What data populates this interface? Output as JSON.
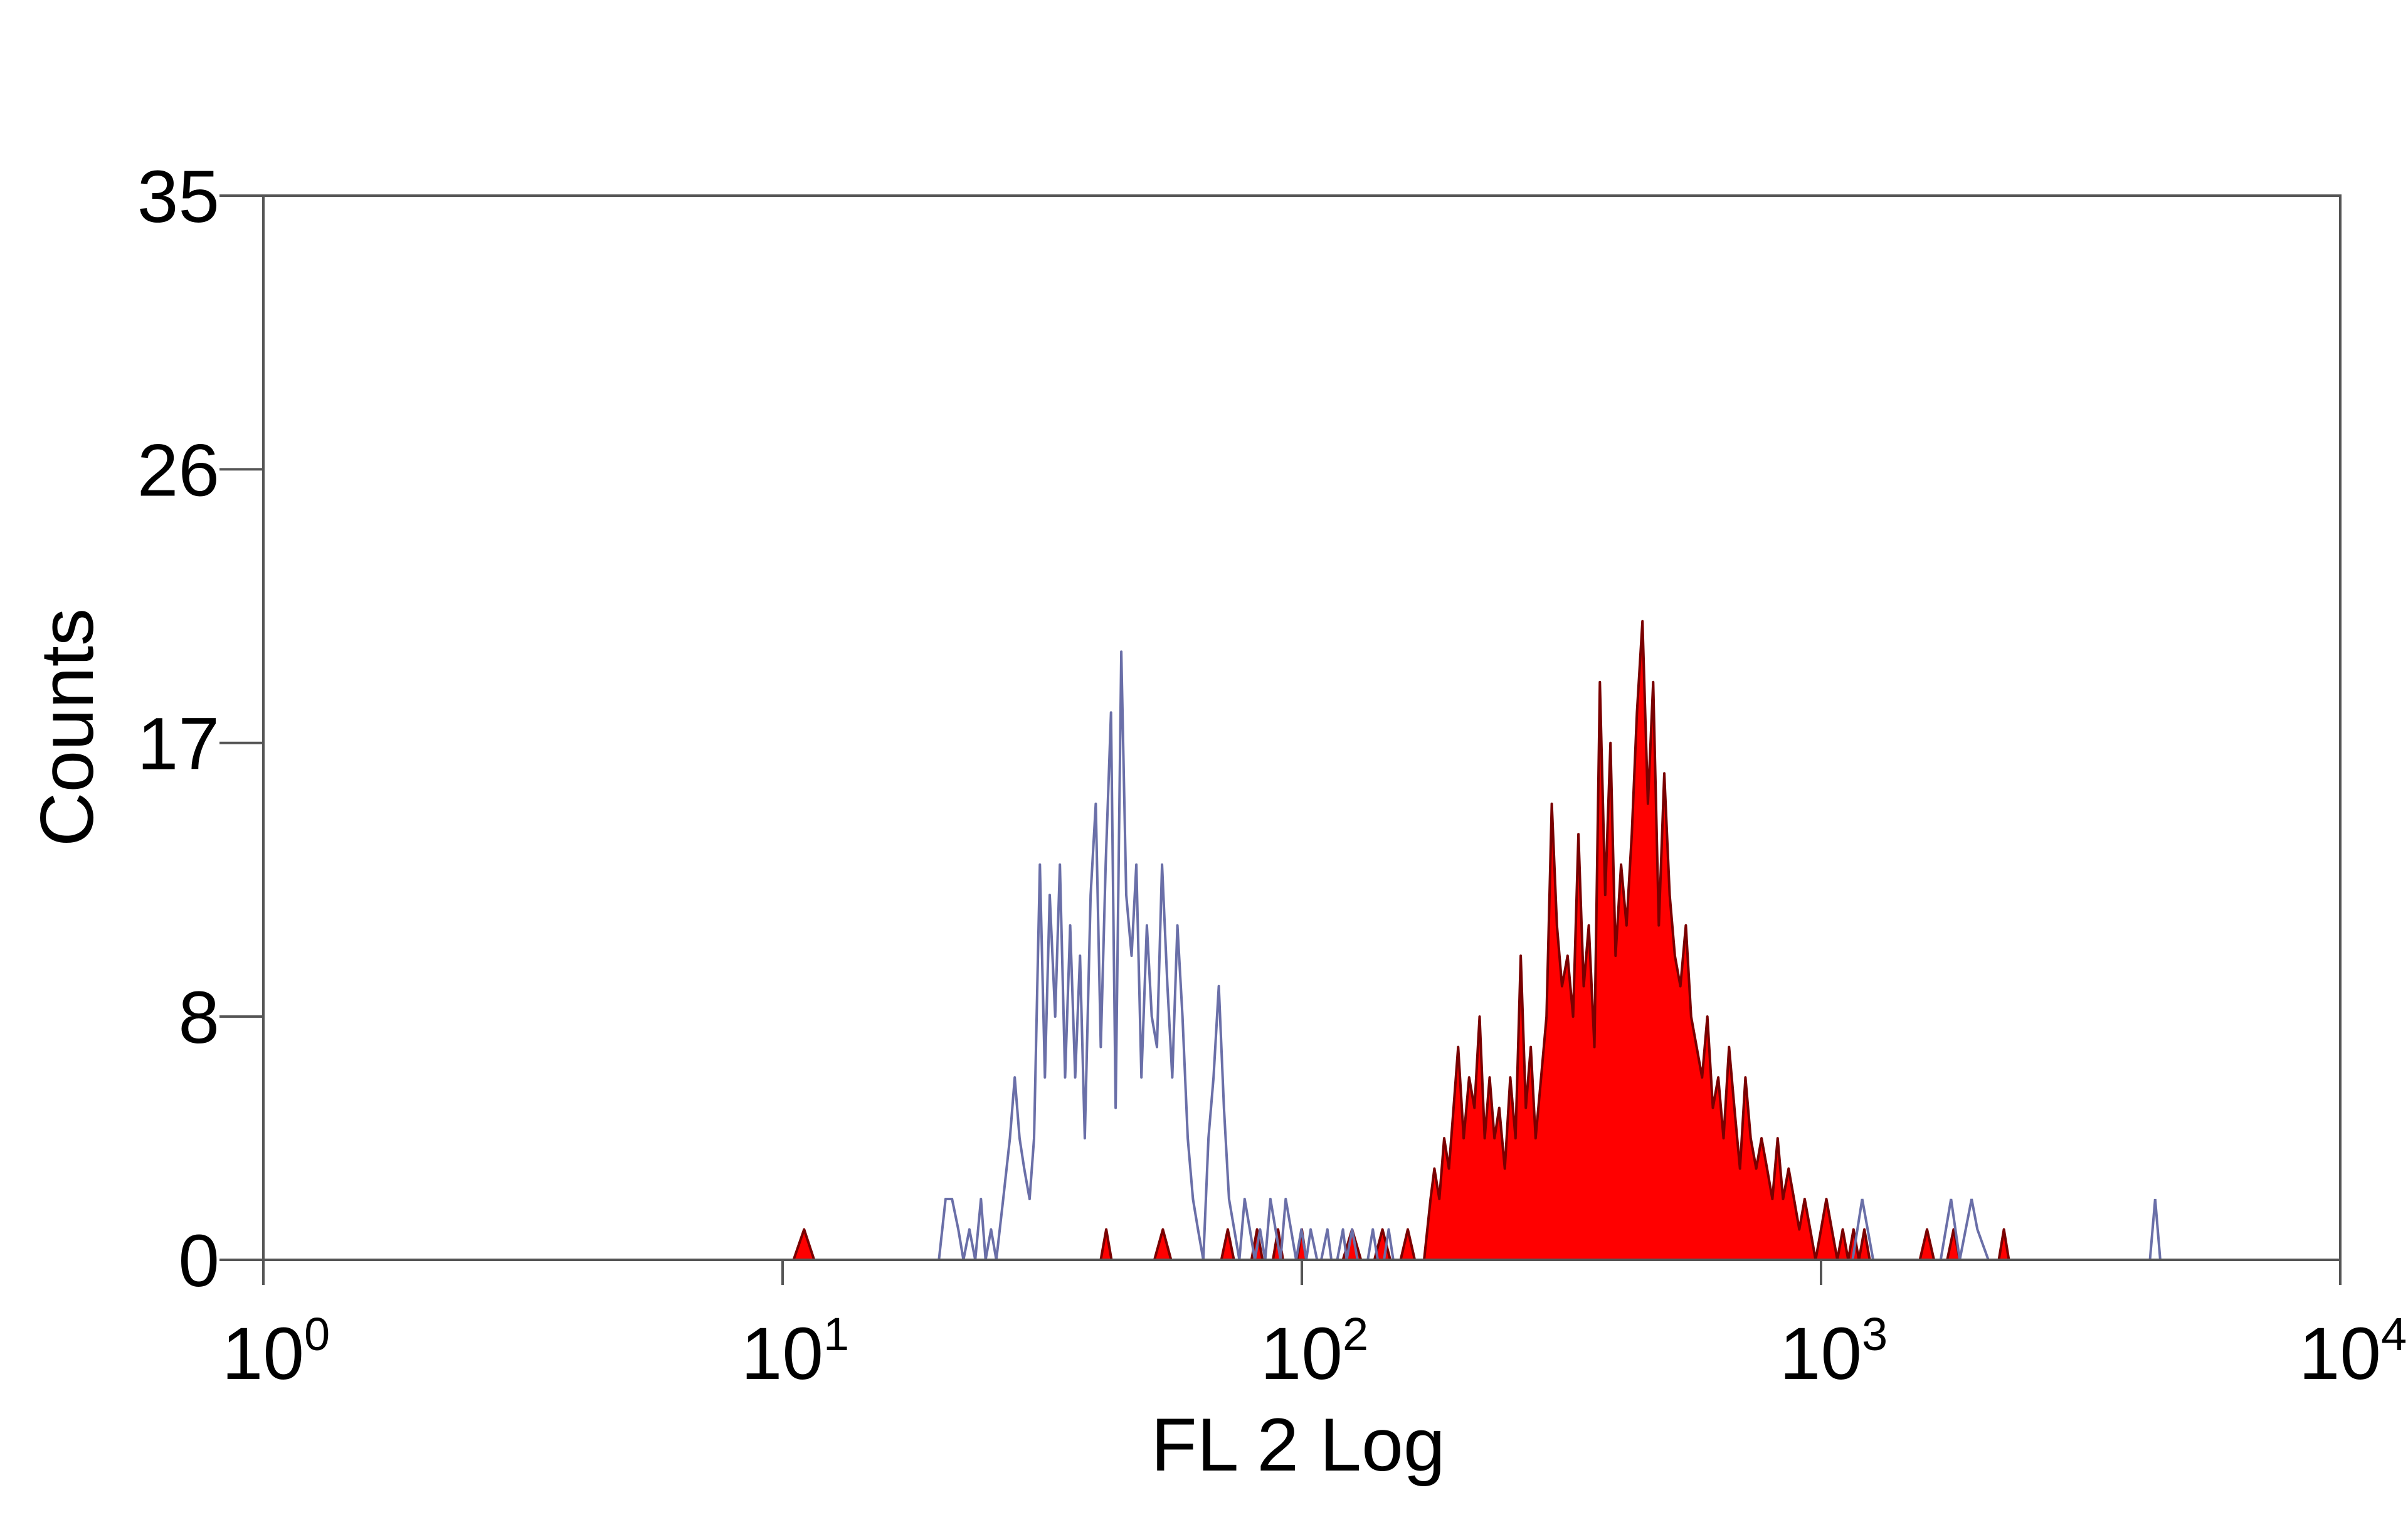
{
  "chart_data": {
    "type": "area",
    "title": "",
    "xlabel": "FL 2 Log",
    "ylabel": "Counts",
    "x_scale": "log",
    "xlim": [
      1,
      10000
    ],
    "ylim": [
      0,
      35
    ],
    "grid": false,
    "y_ticks": [
      {
        "value": 0,
        "label": "0"
      },
      {
        "value": 8,
        "label": "8"
      },
      {
        "value": 17,
        "label": "17"
      },
      {
        "value": 26,
        "label": "26"
      },
      {
        "value": 35,
        "label": "35"
      }
    ],
    "x_ticks": [
      {
        "value": 1,
        "base": "10",
        "exp": "0"
      },
      {
        "value": 10,
        "base": "10",
        "exp": "1"
      },
      {
        "value": 100,
        "base": "10",
        "exp": "2"
      },
      {
        "value": 1000,
        "base": "10",
        "exp": "3"
      },
      {
        "value": 10000,
        "base": "10",
        "exp": "4"
      }
    ],
    "colors": {
      "control_line": "#6a6fa8",
      "sample_fill": "#ff0000",
      "sample_edge": "#7a0000",
      "axis": "#555555"
    },
    "series": [
      {
        "style": "outline",
        "x": [
          20.0,
          20.6,
          21.2,
          21.8,
          22.3,
          22.9,
          23.5,
          24.1,
          24.6,
          25.2,
          25.8,
          26.6,
          27.4,
          28.0,
          28.6,
          29.2,
          29.9,
          30.5,
          31.3,
          32.0,
          32.7,
          33.5,
          34.2,
          35.0,
          35.8,
          36.6,
          37.4,
          38.2,
          39.2,
          40.1,
          41.0,
          41.9,
          42.9,
          43.8,
          44.9,
          45.9,
          47.0,
          48.0,
          49.1,
          50.3,
          51.4,
          52.6,
          53.8,
          55.1,
          56.3,
          57.6,
          58.9,
          60.3,
          61.7,
          63.1,
          64.6,
          66.1,
          67.6,
          69.2,
          70.8,
          72.4,
          74.1,
          75.8,
          77.6,
          79.4,
          81.2,
          83.1,
          85.0,
          87.0,
          89.0,
          91.0,
          93.1,
          95.3,
          97.5,
          99.8,
          102,
          104,
          107,
          109,
          112,
          114,
          117,
          120,
          122,
          125,
          128,
          131,
          134,
          137,
          140,
          144,
          147,
          150,
          154,
          158,
          161,
          165,
          169,
          173,
          177,
          181,
          185,
          190,
          194,
          199,
          203
        ],
        "y": [
          0,
          2,
          2,
          1,
          0,
          1,
          0,
          2,
          0,
          1,
          0,
          2,
          4,
          6,
          4,
          3,
          2,
          4,
          13,
          6,
          12,
          8,
          13,
          6,
          11,
          6,
          10,
          4,
          12,
          15,
          7,
          13,
          18,
          5,
          20,
          12,
          10,
          13,
          6,
          11,
          8,
          7,
          13,
          9,
          6,
          11,
          8,
          4,
          2,
          1,
          0,
          4,
          6,
          9,
          5,
          2,
          1,
          0,
          2,
          1,
          0,
          1,
          0,
          2,
          1,
          0,
          2,
          1,
          0,
          1,
          0,
          1,
          0,
          0,
          1,
          0,
          0,
          1,
          0,
          1,
          0,
          0,
          0,
          1,
          0,
          0,
          1,
          0,
          0,
          0,
          0,
          0,
          0,
          0,
          0,
          0,
          0,
          0,
          0,
          0,
          0
        ],
        "x_extra": [
          1150,
          1200,
          1260,
          1700,
          1780,
          1850,
          1950,
          2000,
          2100,
          4300,
          4400,
          4500
        ],
        "y_extra": [
          0,
          2,
          0,
          0,
          2,
          0,
          2,
          1,
          0,
          0,
          2,
          0
        ]
      },
      {
        "style": "filled",
        "x": [
          10.5,
          11.0,
          11.5,
          41.0,
          42.0,
          43.0,
          52.0,
          54.0,
          56.0,
          70.0,
          72.0,
          74.0,
          80.0,
          82.0,
          84.0,
          88.0,
          90.0,
          92.0,
          98.0,
          100.0,
          102.0,
          120.0,
          125.0,
          130.0,
          138.0,
          143.0,
          148.0,
          155.0,
          160.0,
          165.0,
          172.0,
          177.0,
          180.0,
          184.0,
          188.0,
          192.0,
          196.0,
          200.0,
          205.0,
          210.0,
          215.0,
          220.0,
          225.0,
          230.0,
          235.0,
          240.0,
          246.0,
          252.0,
          258.0,
          264.0,
          270.0,
          276.0,
          282.0,
          289.0,
          296.0,
          303.0,
          310.0,
          317.0,
          325.0,
          333.0,
          341.0,
          349.0,
          357.0,
          366.0,
          375.0,
          384.0,
          393.0,
          402.0,
          412.0,
          422.0,
          432.0,
          442.0,
          453.0,
          464.0,
          475.0,
          487.0,
          499.0,
          511.0,
          523.0,
          536.0,
          549.0,
          562.0,
          576.0,
          590.0,
          604.0,
          619.0,
          634.0,
          649.0,
          665.0,
          681.0,
          698.0,
          715.0,
          732.0,
          750.0,
          768.0,
          787.0,
          806.0,
          825.0,
          845.0,
          866.0,
          887.0,
          908.0,
          930.0,
          953.0,
          976.0,
          1000.0,
          1024.0,
          1049.0,
          1075.0,
          1101.0,
          1128.0,
          1155.0,
          1183.0,
          1212.0,
          1241.0,
          1270.0,
          1550.0,
          1600.0,
          1650.0,
          1750.0,
          1800.0,
          1850.0,
          2200.0,
          2250.0,
          2300.0
        ],
        "y": [
          0,
          1,
          0,
          0,
          1,
          0,
          0,
          1,
          0,
          0,
          1,
          0,
          0,
          1,
          0,
          0,
          1,
          0,
          0,
          1,
          0,
          0,
          1,
          0,
          0,
          1,
          0,
          0,
          1,
          0,
          0,
          2,
          3,
          2,
          4,
          3,
          5,
          7,
          4,
          6,
          5,
          8,
          4,
          6,
          4,
          5,
          3,
          6,
          4,
          10,
          5,
          7,
          4,
          6,
          8,
          15,
          11,
          9,
          10,
          8,
          14,
          9,
          11,
          7,
          19,
          12,
          17,
          10,
          13,
          11,
          14,
          18,
          21,
          15,
          19,
          11,
          16,
          12,
          10,
          9,
          11,
          8,
          7,
          6,
          8,
          5,
          6,
          4,
          7,
          5,
          3,
          6,
          4,
          3,
          4,
          3,
          2,
          4,
          2,
          3,
          2,
          1,
          2,
          1,
          0,
          1,
          2,
          1,
          0,
          1,
          0,
          1,
          0,
          1,
          0,
          0,
          0,
          1,
          0,
          0,
          1,
          0,
          0,
          1,
          0
        ]
      }
    ]
  }
}
